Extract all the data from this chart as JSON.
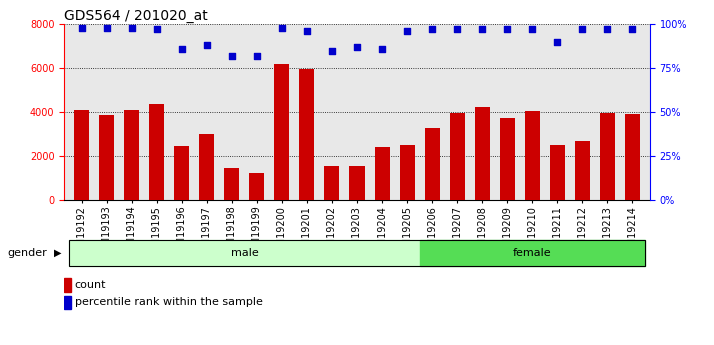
{
  "title": "GDS564 / 201020_at",
  "samples": [
    "GSM19192",
    "GSM19193",
    "GSM19194",
    "GSM19195",
    "GSM19196",
    "GSM19197",
    "GSM19198",
    "GSM19199",
    "GSM19200",
    "GSM19201",
    "GSM19202",
    "GSM19203",
    "GSM19204",
    "GSM19205",
    "GSM19206",
    "GSM19207",
    "GSM19208",
    "GSM19209",
    "GSM19210",
    "GSM19211",
    "GSM19212",
    "GSM19213",
    "GSM19214"
  ],
  "counts": [
    4100,
    3850,
    4100,
    4350,
    2450,
    3000,
    1450,
    1250,
    6200,
    5950,
    1550,
    1550,
    2400,
    2500,
    3300,
    3950,
    4250,
    3750,
    4050,
    2500,
    2700,
    3950,
    3900
  ],
  "percentile_ranks": [
    98,
    98,
    98,
    97,
    86,
    88,
    82,
    82,
    98,
    96,
    85,
    87,
    86,
    96,
    97,
    97,
    97,
    97,
    97,
    90,
    97,
    97,
    97
  ],
  "gender": [
    "male",
    "male",
    "male",
    "male",
    "male",
    "male",
    "male",
    "male",
    "male",
    "male",
    "male",
    "male",
    "male",
    "male",
    "female",
    "female",
    "female",
    "female",
    "female",
    "female",
    "female",
    "female",
    "female"
  ],
  "male_color": "#ccffcc",
  "female_color": "#55dd55",
  "bar_color": "#cc0000",
  "dot_color": "#0000cc",
  "ylim_left": [
    0,
    8000
  ],
  "ylim_right": [
    0,
    100
  ],
  "yticks_left": [
    0,
    2000,
    4000,
    6000,
    8000
  ],
  "yticks_right": [
    0,
    25,
    50,
    75,
    100
  ],
  "grid_color": "#000000",
  "plot_bg_color": "#e8e8e8",
  "title_fontsize": 10,
  "tick_fontsize": 7,
  "label_fontsize": 8
}
